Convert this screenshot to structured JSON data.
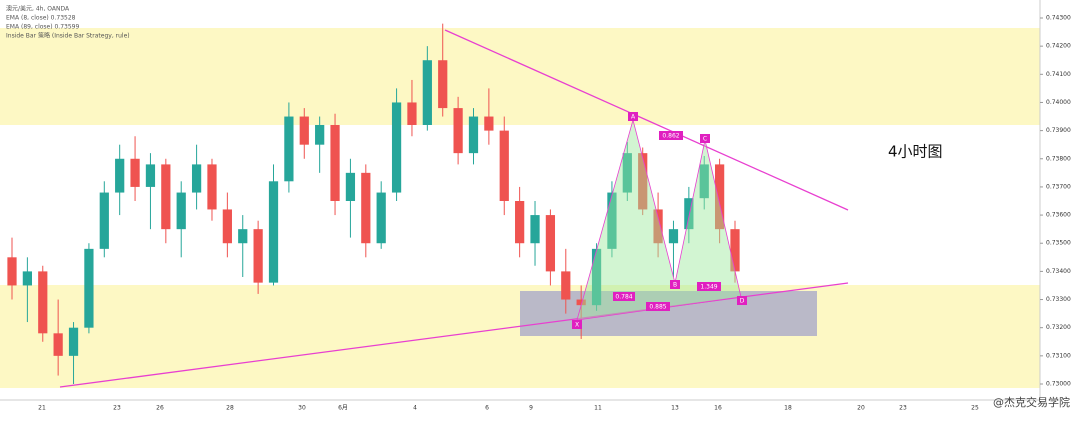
{
  "chart_data": {
    "type": "candlestick",
    "legend_lines": [
      "澳元/美元, 4h, OANDA",
      "EMA (8, close) 0.73528",
      "EMA (89, close) 0.73599",
      "Inside Bar 策略 (Inside Bar Strategy, rule)"
    ],
    "annotation": "4小时图",
    "pattern_points": [
      "X",
      "A",
      "B",
      "C",
      "D"
    ],
    "pattern_ratios": [
      "0.784",
      "0.862",
      "0.885",
      "1.349"
    ],
    "watermark": "@杰克交易学院",
    "x_labels": [
      "21",
      "23",
      "26",
      "28",
      "30",
      "6月",
      "4",
      "6",
      "9",
      "11",
      "13",
      "16",
      "18",
      "20",
      "23",
      "25"
    ],
    "up_color": "#26a69a",
    "down_color": "#ef5350",
    "candles": [
      [
        0.7345,
        0.7352,
        0.733,
        0.7335
      ],
      [
        0.7335,
        0.7345,
        0.7322,
        0.734
      ],
      [
        0.734,
        0.7342,
        0.7315,
        0.7318
      ],
      [
        0.7318,
        0.733,
        0.7303,
        0.731
      ],
      [
        0.731,
        0.7322,
        0.73,
        0.732
      ],
      [
        0.732,
        0.735,
        0.7318,
        0.7348
      ],
      [
        0.7348,
        0.7372,
        0.7345,
        0.7368
      ],
      [
        0.7368,
        0.7385,
        0.736,
        0.738
      ],
      [
        0.738,
        0.7388,
        0.7365,
        0.737
      ],
      [
        0.737,
        0.7382,
        0.7355,
        0.7378
      ],
      [
        0.7378,
        0.738,
        0.735,
        0.7355
      ],
      [
        0.7355,
        0.7372,
        0.7345,
        0.7368
      ],
      [
        0.7368,
        0.7385,
        0.7362,
        0.7378
      ],
      [
        0.7378,
        0.738,
        0.7358,
        0.7362
      ],
      [
        0.7362,
        0.7368,
        0.7345,
        0.735
      ],
      [
        0.735,
        0.736,
        0.7338,
        0.7355
      ],
      [
        0.7355,
        0.7358,
        0.7332,
        0.7336
      ],
      [
        0.7336,
        0.7378,
        0.7335,
        0.7372
      ],
      [
        0.7372,
        0.74,
        0.7368,
        0.7395
      ],
      [
        0.7395,
        0.7398,
        0.738,
        0.7385
      ],
      [
        0.7385,
        0.7395,
        0.7375,
        0.7392
      ],
      [
        0.7392,
        0.7396,
        0.736,
        0.7365
      ],
      [
        0.7365,
        0.738,
        0.7352,
        0.7375
      ],
      [
        0.7375,
        0.7378,
        0.7345,
        0.735
      ],
      [
        0.735,
        0.7372,
        0.7348,
        0.7368
      ],
      [
        0.7368,
        0.7405,
        0.7365,
        0.74
      ],
      [
        0.74,
        0.7408,
        0.7388,
        0.7392
      ],
      [
        0.7392,
        0.742,
        0.739,
        0.7415
      ],
      [
        0.7415,
        0.7428,
        0.7395,
        0.7398
      ],
      [
        0.7398,
        0.7402,
        0.7378,
        0.7382
      ],
      [
        0.7382,
        0.7398,
        0.7378,
        0.7395
      ],
      [
        0.7395,
        0.7405,
        0.7385,
        0.739
      ],
      [
        0.739,
        0.7395,
        0.736,
        0.7365
      ],
      [
        0.7365,
        0.737,
        0.7345,
        0.735
      ],
      [
        0.735,
        0.7365,
        0.7342,
        0.736
      ],
      [
        0.736,
        0.7362,
        0.7335,
        0.734
      ],
      [
        0.734,
        0.7348,
        0.7325,
        0.733
      ],
      [
        0.733,
        0.7335,
        0.7316,
        0.7328
      ],
      [
        0.7328,
        0.735,
        0.7326,
        0.7348
      ],
      [
        0.7348,
        0.7372,
        0.7345,
        0.7368
      ],
      [
        0.7368,
        0.7386,
        0.7365,
        0.7382
      ],
      [
        0.7382,
        0.7384,
        0.736,
        0.7362
      ],
      [
        0.7362,
        0.7368,
        0.7345,
        0.735
      ],
      [
        0.735,
        0.7358,
        0.7338,
        0.7355
      ],
      [
        0.7355,
        0.737,
        0.735,
        0.7366
      ],
      [
        0.7366,
        0.7381,
        0.7362,
        0.7378
      ],
      [
        0.7378,
        0.738,
        0.735,
        0.7355
      ],
      [
        0.7355,
        0.7358,
        0.7336,
        0.734
      ]
    ],
    "ylim": [
      0.73,
      0.743
    ],
    "yticks": [
      {
        "value": 0.73,
        "label": "0.73000"
      },
      {
        "value": 0.731,
        "label": "0.73100"
      },
      {
        "value": 0.732,
        "label": "0.73200"
      },
      {
        "value": 0.733,
        "label": "0.73300"
      },
      {
        "value": 0.734,
        "label": "0.73400"
      },
      {
        "value": 0.735,
        "label": "0.73500"
      },
      {
        "value": 0.736,
        "label": "0.73600"
      },
      {
        "value": 0.737,
        "label": "0.73700"
      },
      {
        "value": 0.738,
        "label": "0.73800"
      },
      {
        "value": 0.739,
        "label": "0.73900"
      },
      {
        "value": 0.74,
        "label": "0.74000"
      },
      {
        "value": 0.741,
        "label": "0.74100"
      },
      {
        "value": 0.742,
        "label": "0.74200"
      },
      {
        "value": 0.743,
        "label": "0.74300"
      }
    ]
  }
}
